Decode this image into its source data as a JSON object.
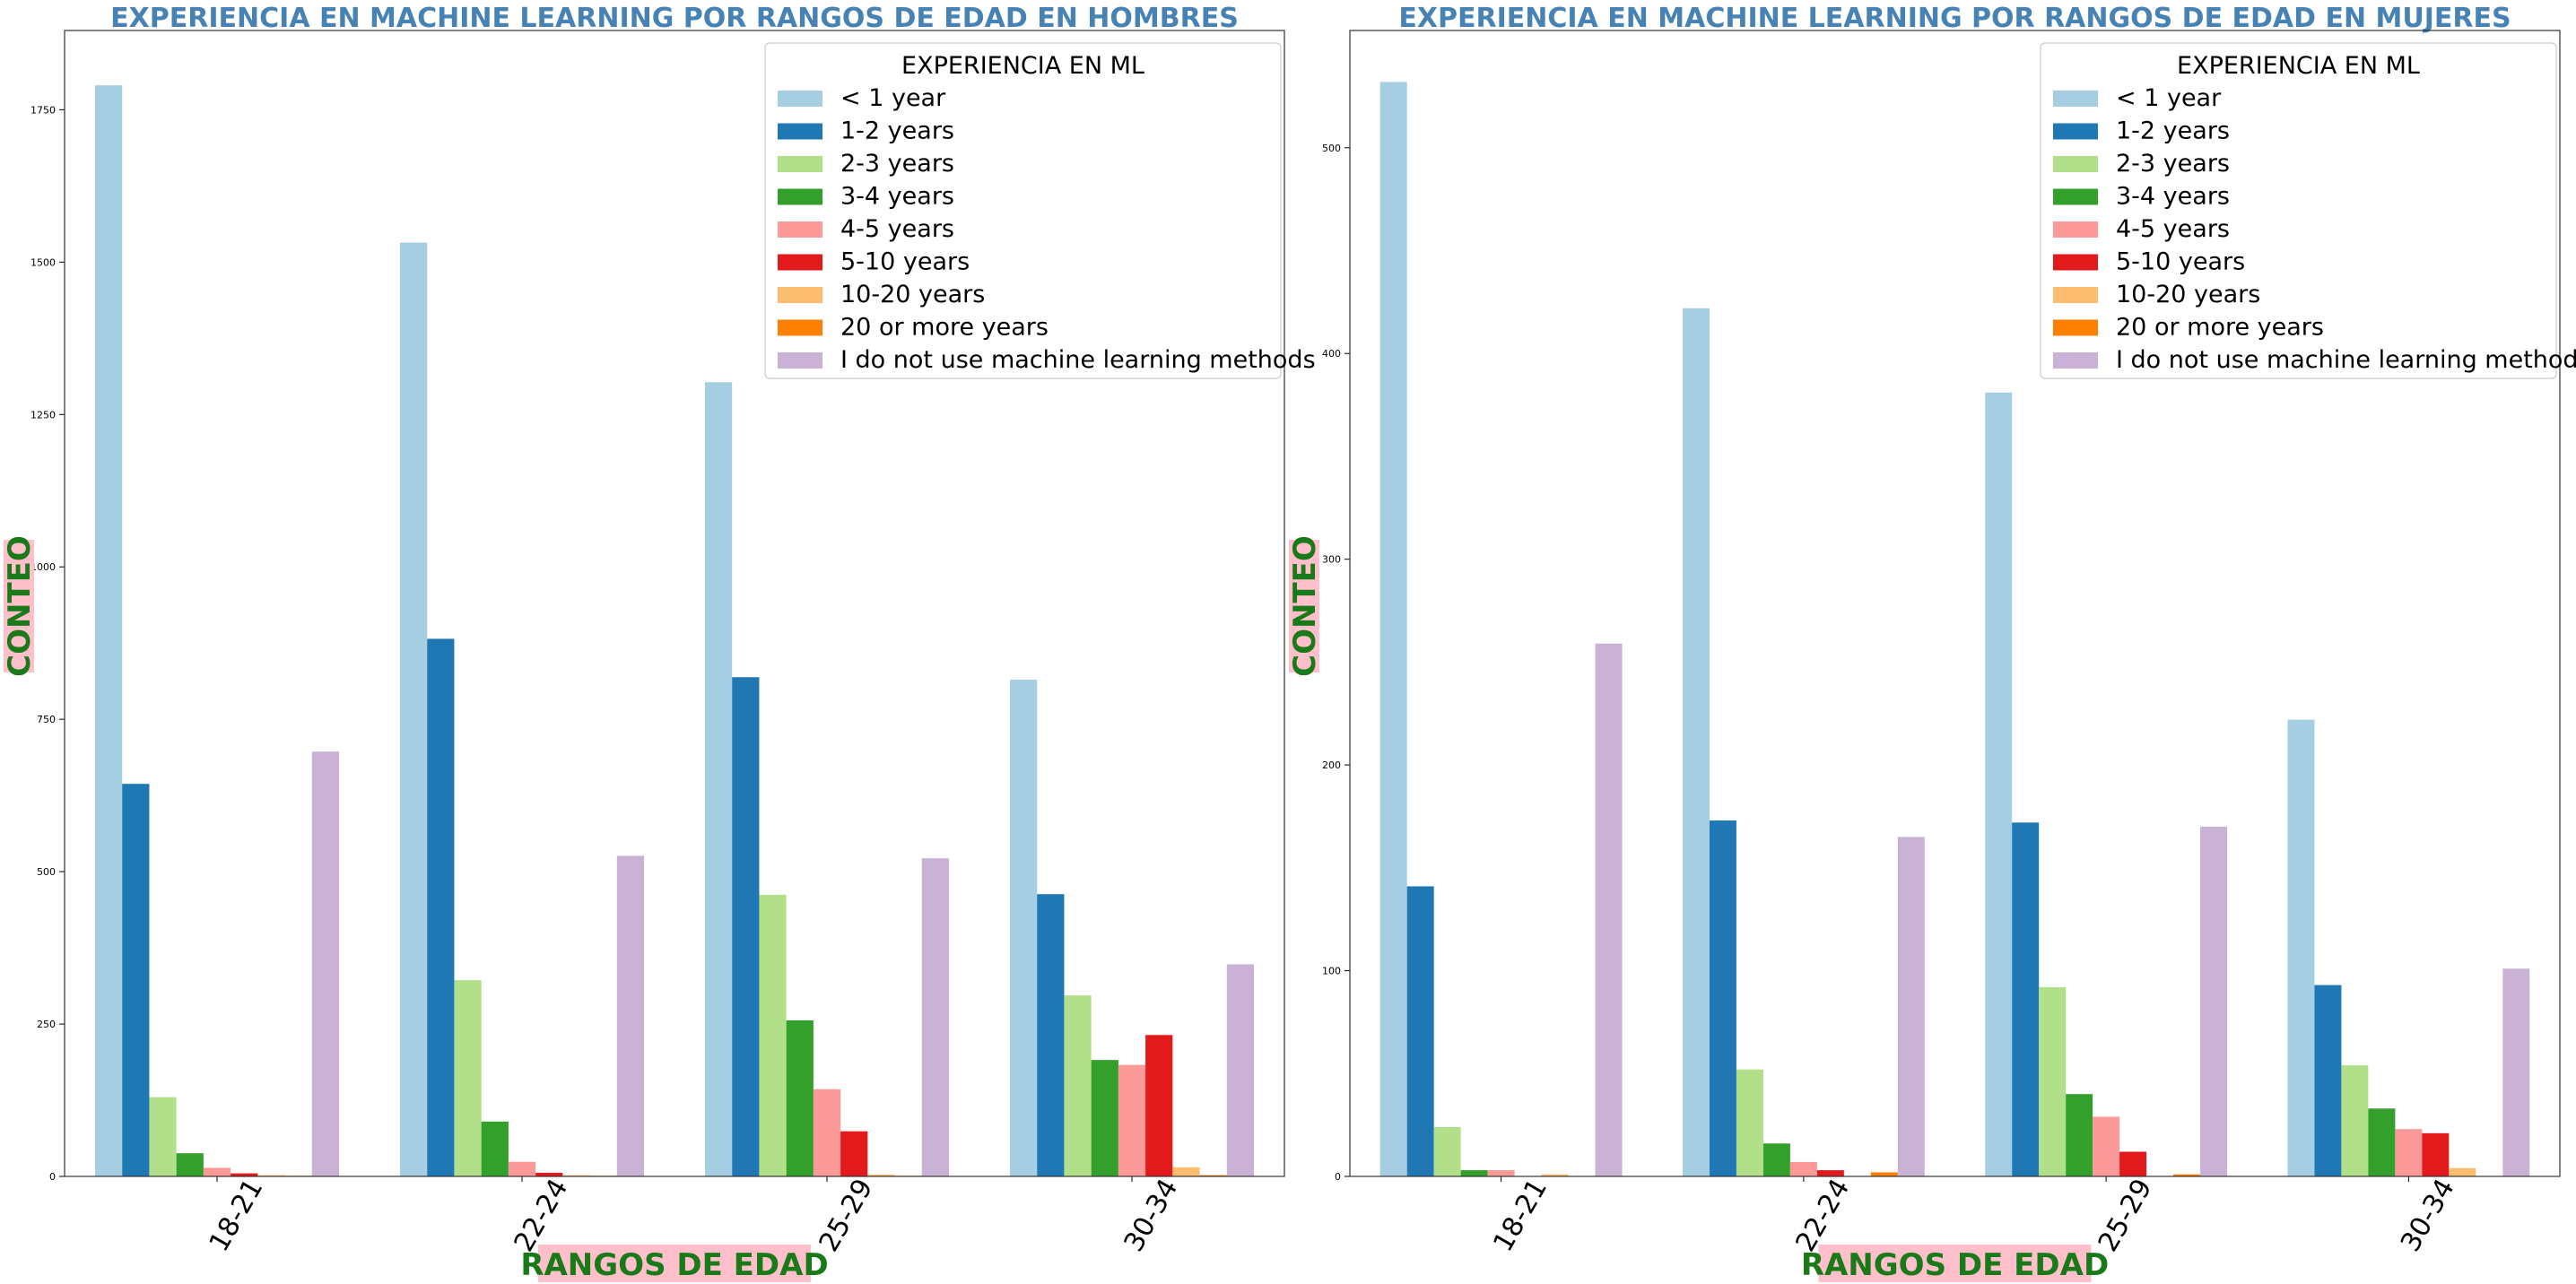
{
  "category_colors": [
    "#a6cee3",
    "#1f78b4",
    "#b2df8a",
    "#33a02c",
    "#fb9a99",
    "#e31a1c",
    "#fdbf6f",
    "#ff7f00",
    "#cab2d6"
  ],
  "title_color": "#4682b4",
  "axis_label_color": "#1a7a1a",
  "axis_label_bg": "#ffc0cb",
  "chart_data": [
    {
      "type": "bar",
      "title": "EXPERIENCIA EN MACHINE LEARNING POR RANGOS DE EDAD EN HOMBRES",
      "xlabel": "RANGOS DE EDAD",
      "ylabel": "CONTEO",
      "categories": [
        "18-21",
        "22-24",
        "25-29",
        "30-34"
      ],
      "ylim": [
        0,
        1880
      ],
      "yticks": [
        0,
        250,
        500,
        750,
        1000,
        1250,
        1500,
        1750
      ],
      "legend_title": "EXPERIENCIA EN ML",
      "legend_position": "top-right",
      "series": [
        {
          "name": "< 1 year",
          "values": [
            1790,
            1532,
            1303,
            815
          ]
        },
        {
          "name": "1-2 years",
          "values": [
            644,
            882,
            819,
            463
          ]
        },
        {
          "name": "2-3 years",
          "values": [
            130,
            322,
            462,
            297
          ]
        },
        {
          "name": "3-4 years",
          "values": [
            38,
            90,
            256,
            191
          ]
        },
        {
          "name": "4-5 years",
          "values": [
            14,
            24,
            143,
            183
          ]
        },
        {
          "name": "5-10 years",
          "values": [
            5,
            6,
            74,
            232
          ]
        },
        {
          "name": "10-20 years",
          "values": [
            2,
            2,
            3,
            15
          ]
        },
        {
          "name": "20 or more years",
          "values": [
            1,
            1,
            1,
            2
          ]
        },
        {
          "name": "I do not use machine learning methods",
          "values": [
            697,
            526,
            522,
            348
          ]
        }
      ]
    },
    {
      "type": "bar",
      "title": "EXPERIENCIA EN MACHINE LEARNING POR RANGOS DE EDAD EN MUJERES",
      "xlabel": "RANGOS DE EDAD",
      "ylabel": "CONTEO",
      "categories": [
        "18-21",
        "22-24",
        "25-29",
        "30-34"
      ],
      "ylim": [
        0,
        557
      ],
      "yticks": [
        0,
        100,
        200,
        300,
        400,
        500
      ],
      "legend_title": "EXPERIENCIA EN ML",
      "legend_position": "top-right",
      "series": [
        {
          "name": "< 1 year",
          "values": [
            532,
            422,
            381,
            222
          ]
        },
        {
          "name": "1-2 years",
          "values": [
            141,
            173,
            172,
            93
          ]
        },
        {
          "name": "2-3 years",
          "values": [
            24,
            52,
            92,
            54
          ]
        },
        {
          "name": "3-4 years",
          "values": [
            3,
            16,
            40,
            33
          ]
        },
        {
          "name": "4-5 years",
          "values": [
            3,
            7,
            29,
            23
          ]
        },
        {
          "name": "5-10 years",
          "values": [
            0,
            3,
            12,
            21
          ]
        },
        {
          "name": "10-20 years",
          "values": [
            1,
            0,
            0,
            4
          ]
        },
        {
          "name": "20 or more years",
          "values": [
            0,
            2,
            1,
            0
          ]
        },
        {
          "name": "I do not use machine learning methods",
          "values": [
            259,
            165,
            170,
            101
          ]
        }
      ]
    }
  ]
}
